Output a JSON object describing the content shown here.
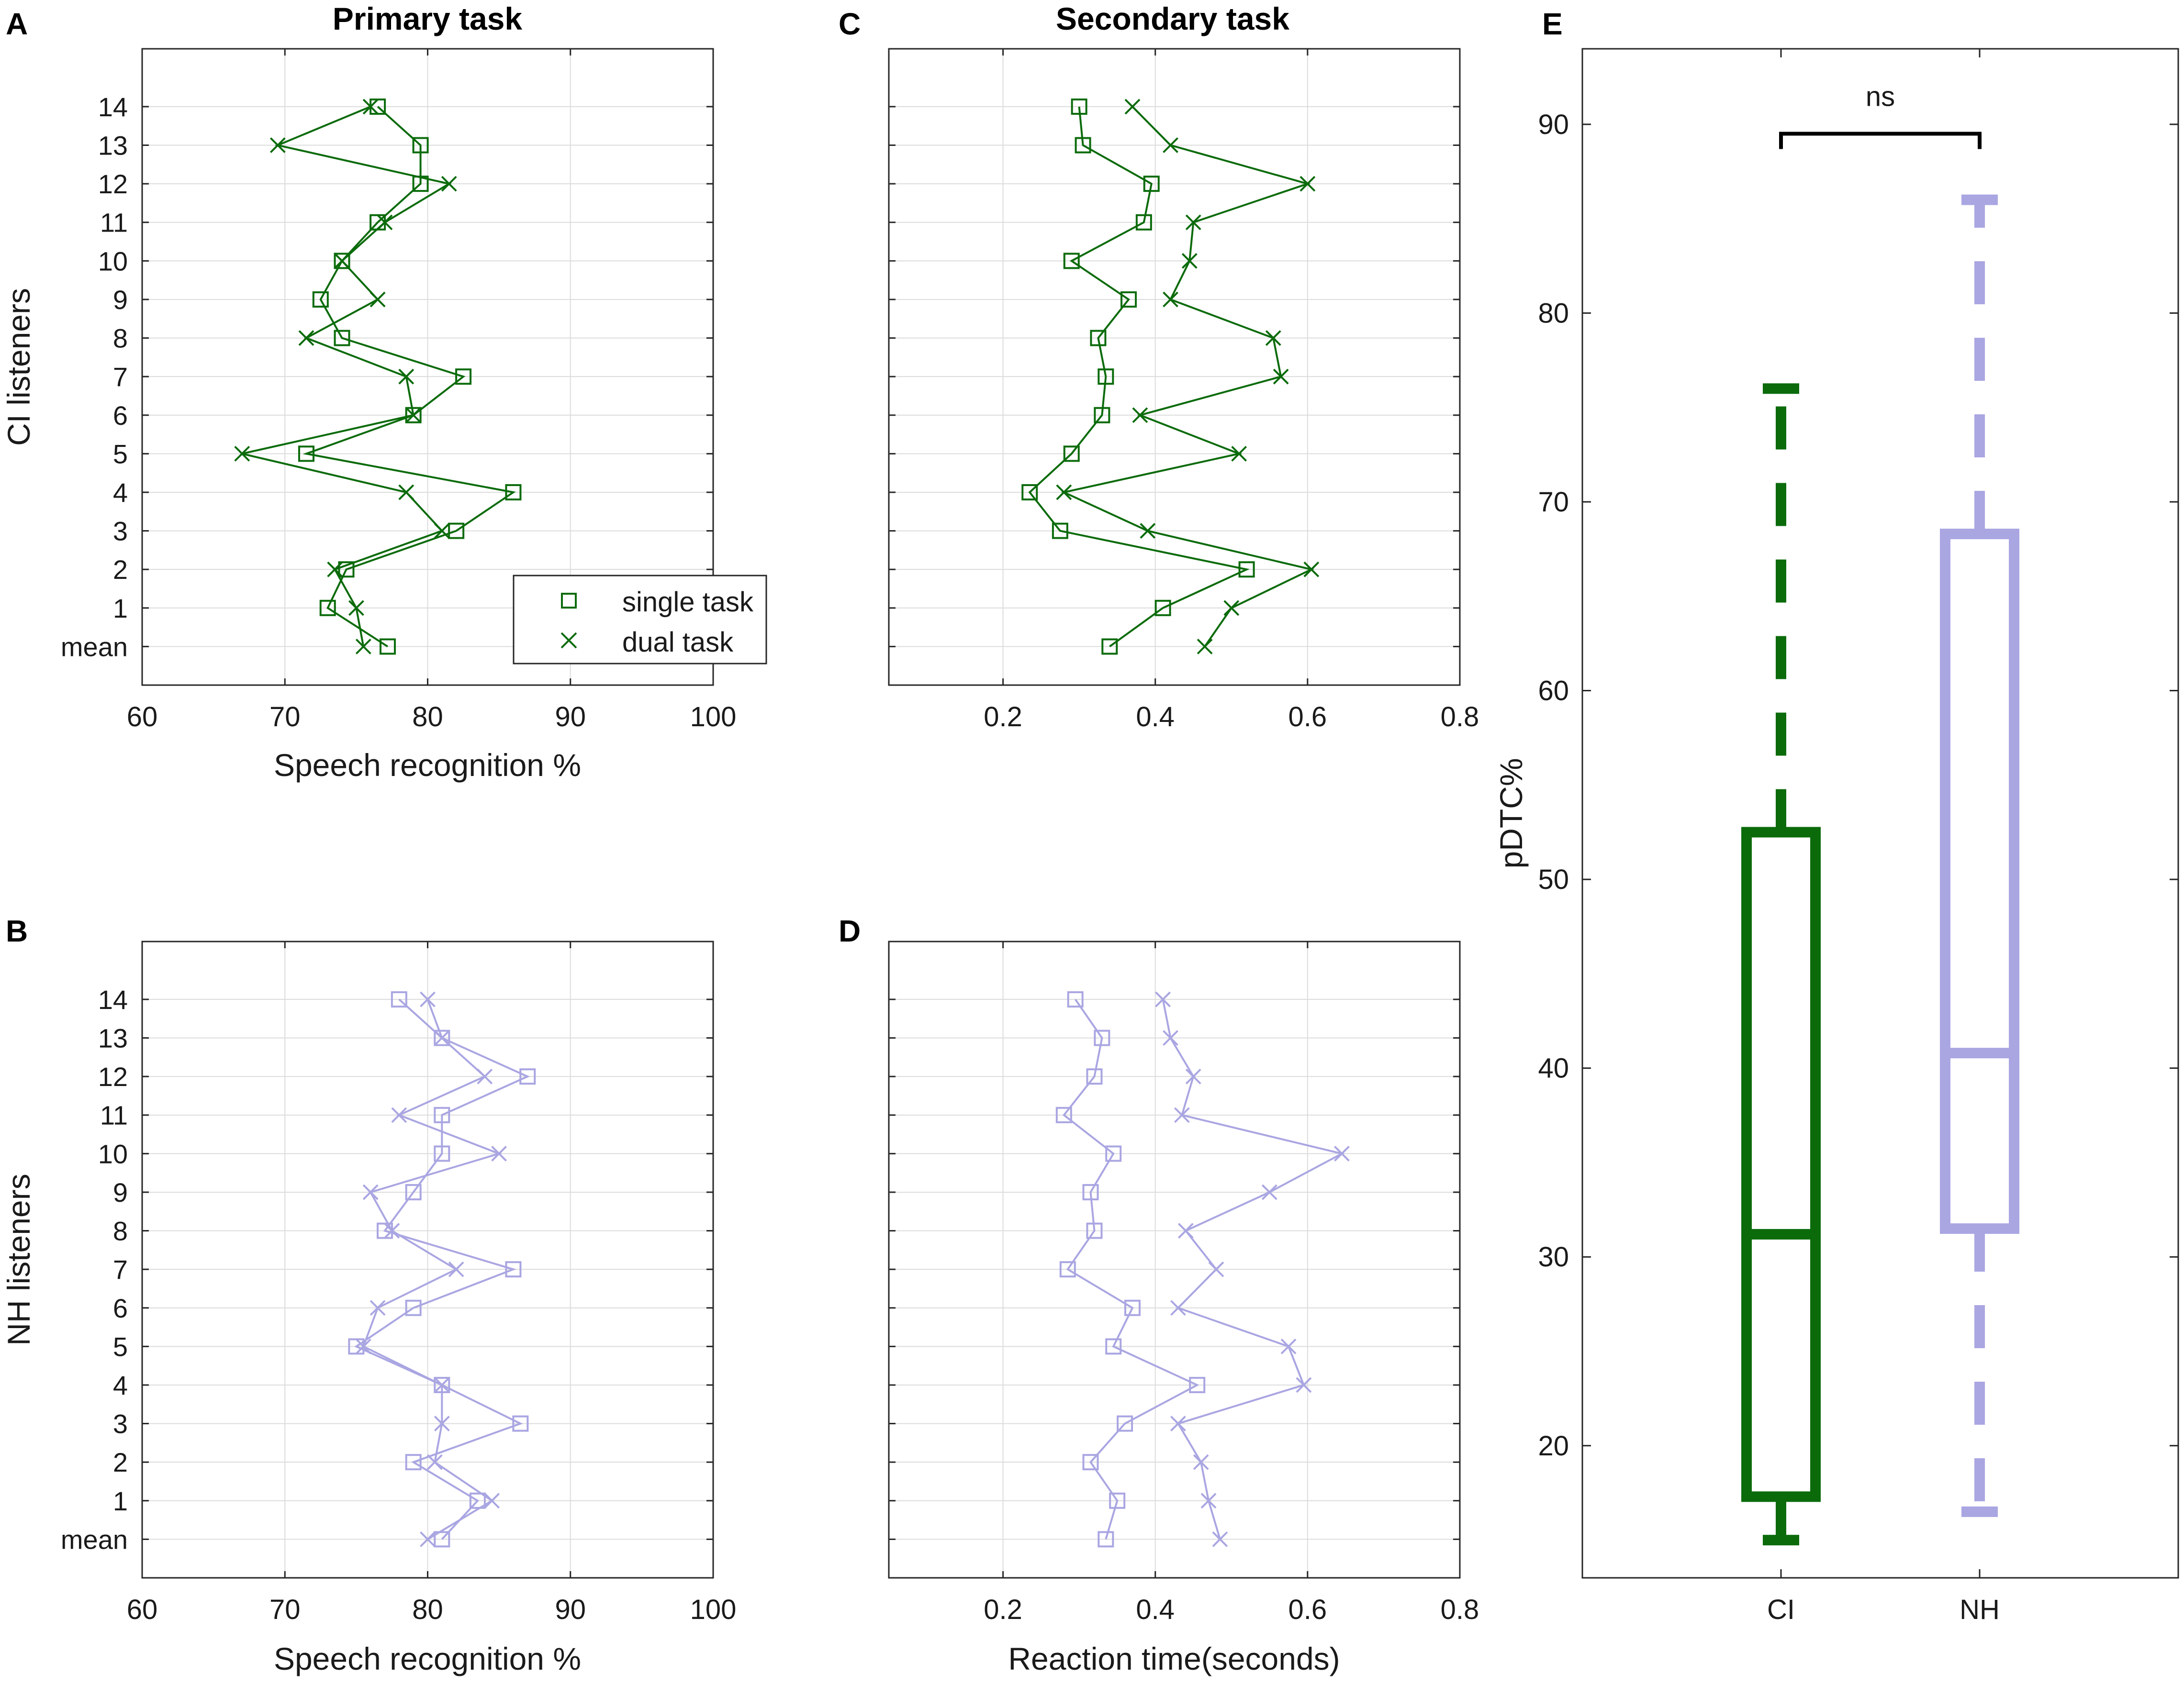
{
  "colors": {
    "ci": "#0b6b0b",
    "nh": "#aaa6e2",
    "grid": "#dcdcdc",
    "axis": "#262626",
    "bracket": "#000000"
  },
  "chart_data": [
    {
      "id": "A",
      "panel_letter": "A",
      "type": "line",
      "title": "Primary task",
      "xlabel": "Speech recognition %",
      "ylabel": "CI listeners",
      "xlim": [
        60,
        100
      ],
      "xticks": [
        60,
        70,
        80,
        90,
        100
      ],
      "ylim": [
        -1,
        15.5
      ],
      "ytick_labels": [
        "mean",
        "1",
        "2",
        "3",
        "4",
        "5",
        "6",
        "7",
        "8",
        "9",
        "10",
        "11",
        "12",
        "13",
        "14"
      ],
      "grid": true,
      "color": "ci",
      "legend": {
        "position": "bottom-right",
        "entries": [
          "single task",
          "dual task"
        ]
      },
      "series": [
        {
          "name": "single task",
          "marker": "square",
          "values": [
            77.2,
            73,
            74.3,
            82,
            86,
            71.5,
            79,
            82.5,
            74,
            72.5,
            74,
            76.5,
            79.5,
            79.5,
            76.5
          ]
        },
        {
          "name": "dual task",
          "marker": "x",
          "values": [
            75.5,
            75,
            73.5,
            81,
            78.5,
            67,
            79,
            78.5,
            71.5,
            76.5,
            74,
            77,
            81.5,
            69.5,
            76
          ]
        }
      ]
    },
    {
      "id": "B",
      "panel_letter": "B",
      "type": "line",
      "title": "",
      "xlabel": "Speech recognition %",
      "ylabel": "NH listeners",
      "xlim": [
        60,
        100
      ],
      "xticks": [
        60,
        70,
        80,
        90,
        100
      ],
      "ylim": [
        -1,
        15.5
      ],
      "ytick_labels": [
        "mean",
        "1",
        "2",
        "3",
        "4",
        "5",
        "6",
        "7",
        "8",
        "9",
        "10",
        "11",
        "12",
        "13",
        "14"
      ],
      "grid": true,
      "color": "nh",
      "series": [
        {
          "name": "single task",
          "marker": "square",
          "values": [
            81,
            83.5,
            79,
            86.5,
            81,
            75,
            79,
            86,
            77,
            79,
            81,
            81,
            87,
            81,
            78
          ]
        },
        {
          "name": "dual task",
          "marker": "x",
          "values": [
            80,
            84.5,
            80.5,
            81,
            81,
            75.5,
            76.5,
            82,
            77.5,
            76,
            85,
            78,
            84,
            81,
            80
          ]
        }
      ]
    },
    {
      "id": "C",
      "panel_letter": "C",
      "type": "line",
      "title": "Secondary task",
      "xlabel": "",
      "ylabel": "",
      "xlim": [
        0.05,
        0.8
      ],
      "xticks": [
        0.2,
        0.4,
        0.6,
        0.8
      ],
      "ylim": [
        -1,
        15.5
      ],
      "ytick_labels": [],
      "grid": true,
      "color": "ci",
      "series": [
        {
          "name": "single task",
          "marker": "square",
          "values": [
            0.34,
            0.41,
            0.52,
            0.275,
            0.235,
            0.29,
            0.33,
            0.335,
            0.325,
            0.365,
            0.29,
            0.385,
            0.395,
            0.305,
            0.3
          ]
        },
        {
          "name": "dual task",
          "marker": "x",
          "values": [
            0.465,
            0.5,
            0.605,
            0.39,
            0.28,
            0.51,
            0.38,
            0.565,
            0.555,
            0.42,
            0.445,
            0.45,
            0.6,
            0.42,
            0.37
          ]
        }
      ]
    },
    {
      "id": "D",
      "panel_letter": "D",
      "type": "line",
      "title": "",
      "xlabel": "Reaction time(seconds)",
      "ylabel": "",
      "xlim": [
        0.05,
        0.8
      ],
      "xticks": [
        0.2,
        0.4,
        0.6,
        0.8
      ],
      "ylim": [
        -1,
        15.5
      ],
      "ytick_labels": [],
      "grid": true,
      "color": "nh",
      "series": [
        {
          "name": "single task",
          "marker": "square",
          "values": [
            0.335,
            0.35,
            0.315,
            0.36,
            0.455,
            0.345,
            0.37,
            0.285,
            0.32,
            0.315,
            0.345,
            0.28,
            0.32,
            0.33,
            0.295
          ]
        },
        {
          "name": "dual task",
          "marker": "x",
          "values": [
            0.485,
            0.47,
            0.46,
            0.43,
            0.595,
            0.575,
            0.43,
            0.48,
            0.44,
            0.55,
            0.645,
            0.435,
            0.45,
            0.42,
            0.41
          ]
        }
      ]
    },
    {
      "id": "E",
      "panel_letter": "E",
      "type": "box",
      "title": "",
      "xlabel": "",
      "ylabel": "pDTC%",
      "categories": [
        "CI",
        "NH"
      ],
      "ylim": [
        13,
        94
      ],
      "yticks": [
        20,
        30,
        40,
        50,
        60,
        70,
        80,
        90
      ],
      "grid": false,
      "significance": {
        "label": "ns",
        "level": 89.5,
        "between": [
          "CI",
          "NH"
        ]
      },
      "boxes": [
        {
          "name": "CI",
          "color": "ci",
          "min": 15,
          "q1": 17.3,
          "median": 31.2,
          "q3": 52.5,
          "max": 76
        },
        {
          "name": "NH",
          "color": "nh",
          "min": 16.5,
          "q1": 31.5,
          "median": 40.8,
          "q3": 68.3,
          "max": 86
        }
      ]
    }
  ]
}
